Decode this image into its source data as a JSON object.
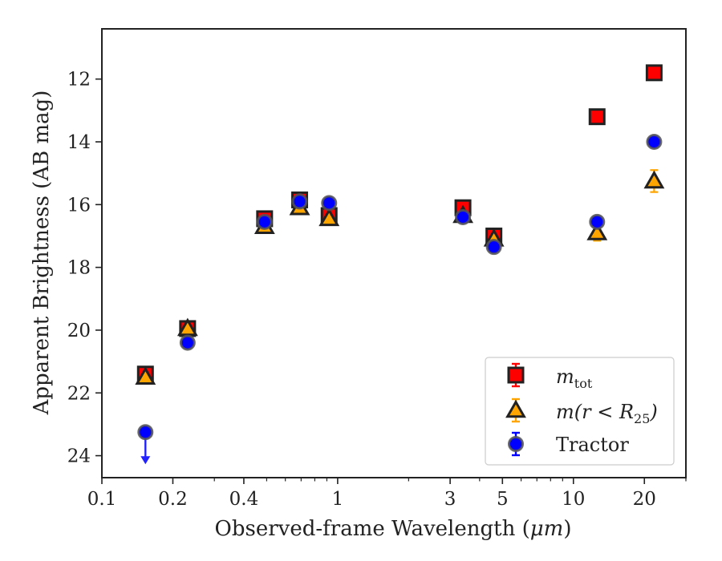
{
  "chart_data": {
    "type": "scatter",
    "xlabel_prefix": "Observed-frame Wavelength (",
    "xlabel_unit": "μm",
    "xlabel_suffix": ")",
    "ylabel": "Apparent Brightness (AB mag)",
    "xscale": "log",
    "xlim": [
      0.1,
      30
    ],
    "ylim": [
      24.7,
      10.4
    ],
    "y_inverted": true,
    "x_ticks": [
      {
        "value": 0.1,
        "label": "0.1"
      },
      {
        "value": 0.2,
        "label": "0.2"
      },
      {
        "value": 0.4,
        "label": "0.4"
      },
      {
        "value": 1,
        "label": "1"
      },
      {
        "value": 3,
        "label": "3"
      },
      {
        "value": 5,
        "label": "5"
      },
      {
        "value": 10,
        "label": "10"
      },
      {
        "value": 20,
        "label": "20"
      }
    ],
    "y_ticks": [
      {
        "value": 12,
        "label": "12"
      },
      {
        "value": 14,
        "label": "14"
      },
      {
        "value": 16,
        "label": "16"
      },
      {
        "value": 18,
        "label": "18"
      },
      {
        "value": 20,
        "label": "20"
      },
      {
        "value": 22,
        "label": "22"
      },
      {
        "value": 24,
        "label": "24"
      }
    ],
    "legend_position": "lower right",
    "series": [
      {
        "name": "m_tot",
        "label_main": "m",
        "label_sub": "tot",
        "marker": "square",
        "color": "#ff0000",
        "edge": "#222222",
        "x": [
          0.153,
          0.231,
          0.49,
          0.69,
          0.92,
          3.4,
          4.6,
          12.6,
          22.0
        ],
        "y": [
          21.4,
          19.95,
          16.45,
          15.85,
          16.35,
          16.1,
          17.0,
          13.2,
          11.8
        ],
        "yerr": [
          0.05,
          0.05,
          0.05,
          0.05,
          0.05,
          0.05,
          0.05,
          0.05,
          0.05
        ]
      },
      {
        "name": "m(r<R25)",
        "label_main": "m(r < R",
        "label_sub": "25",
        "label_end": ")",
        "marker": "triangle",
        "color": "#ffa500",
        "edge": "#222222",
        "x": [
          0.153,
          0.231,
          0.49,
          0.69,
          0.92,
          3.4,
          4.6,
          12.6,
          22.0
        ],
        "y": [
          21.5,
          19.95,
          16.7,
          16.1,
          16.45,
          16.35,
          17.1,
          16.9,
          15.25
        ],
        "yerr": [
          0.05,
          0.05,
          0.05,
          0.05,
          0.05,
          0.05,
          0.05,
          0.25,
          0.35
        ]
      },
      {
        "name": "Tractor",
        "label_main": "Tractor",
        "marker": "circle",
        "color": "#0000ff",
        "edge": "#555555",
        "x": [
          0.153,
          0.231,
          0.49,
          0.69,
          0.92,
          3.4,
          4.6,
          12.6,
          22.0
        ],
        "y": [
          23.25,
          20.4,
          16.55,
          15.9,
          15.95,
          16.4,
          17.35,
          16.55,
          14.0
        ],
        "yerr": [
          0.05,
          0.05,
          0.05,
          0.05,
          0.05,
          0.05,
          0.05,
          0.05,
          0.05
        ],
        "upper_limit_index": 0
      }
    ]
  }
}
